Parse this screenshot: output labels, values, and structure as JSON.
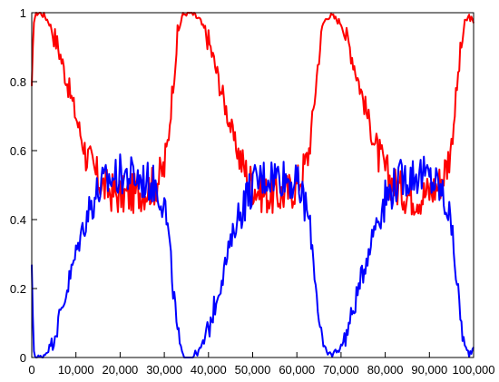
{
  "chart_data": {
    "type": "line",
    "title": "",
    "xlabel": "",
    "ylabel": "",
    "xlim": [
      0,
      100000
    ],
    "ylim": [
      0,
      1
    ],
    "grid": false,
    "legend": "none",
    "x_ticks": [
      {
        "value": 0,
        "label": "0"
      },
      {
        "value": 10000,
        "label": "10,000"
      },
      {
        "value": 20000,
        "label": "20,000"
      },
      {
        "value": 30000,
        "label": "30,000"
      },
      {
        "value": 40000,
        "label": "40,000"
      },
      {
        "value": 50000,
        "label": "50,000"
      },
      {
        "value": 60000,
        "label": "60,000"
      },
      {
        "value": 70000,
        "label": "70,000"
      },
      {
        "value": 80000,
        "label": "80,000"
      },
      {
        "value": 90000,
        "label": "90,000"
      },
      {
        "value": 100000,
        "label": "100,000"
      }
    ],
    "y_ticks": [
      {
        "value": 0,
        "label": "0"
      },
      {
        "value": 0.2,
        "label": "0.2"
      },
      {
        "value": 0.4,
        "label": "0.4"
      },
      {
        "value": 0.6,
        "label": "0.6"
      },
      {
        "value": 0.8,
        "label": "0.8"
      },
      {
        "value": 1,
        "label": "1"
      }
    ],
    "x": [
      0,
      500,
      1000,
      2000,
      3000,
      4000,
      6000,
      8000,
      10000,
      12000,
      14000,
      16000,
      18000,
      20000,
      22000,
      24000,
      26000,
      28000,
      30000,
      31000,
      32000,
      33000,
      34000,
      35000,
      36000,
      37000,
      38000,
      40000,
      42000,
      44000,
      46000,
      48000,
      50000,
      52000,
      54000,
      56000,
      58000,
      60000,
      62000,
      63000,
      64000,
      65000,
      66000,
      67000,
      68000,
      69000,
      70000,
      72000,
      74000,
      76000,
      78000,
      80000,
      82000,
      84000,
      86000,
      88000,
      90000,
      92000,
      94000,
      95000,
      96000,
      97000,
      98000,
      99000,
      100000
    ],
    "series": [
      {
        "color": "#ff0000",
        "values": [
          0.76,
          0.98,
          1.0,
          1.0,
          0.99,
          0.97,
          0.9,
          0.8,
          0.7,
          0.6,
          0.54,
          0.5,
          0.48,
          0.47,
          0.47,
          0.48,
          0.49,
          0.5,
          0.55,
          0.65,
          0.8,
          0.93,
          0.99,
          1.0,
          1.0,
          0.99,
          0.98,
          0.92,
          0.82,
          0.72,
          0.62,
          0.55,
          0.5,
          0.48,
          0.47,
          0.47,
          0.48,
          0.5,
          0.56,
          0.62,
          0.75,
          0.88,
          0.97,
          0.99,
          0.99,
          0.98,
          0.97,
          0.9,
          0.8,
          0.7,
          0.6,
          0.54,
          0.5,
          0.48,
          0.47,
          0.47,
          0.48,
          0.5,
          0.56,
          0.62,
          0.75,
          0.88,
          0.97,
          0.99,
          0.97
        ]
      },
      {
        "color": "#0000ff",
        "values": [
          0.24,
          0.02,
          0.0,
          0.0,
          0.01,
          0.03,
          0.1,
          0.2,
          0.3,
          0.4,
          0.46,
          0.5,
          0.52,
          0.53,
          0.53,
          0.52,
          0.51,
          0.5,
          0.45,
          0.35,
          0.2,
          0.07,
          0.01,
          0.0,
          0.0,
          0.01,
          0.02,
          0.08,
          0.18,
          0.28,
          0.38,
          0.45,
          0.5,
          0.52,
          0.53,
          0.53,
          0.52,
          0.5,
          0.44,
          0.38,
          0.25,
          0.12,
          0.03,
          0.01,
          0.01,
          0.02,
          0.03,
          0.1,
          0.2,
          0.3,
          0.4,
          0.46,
          0.5,
          0.52,
          0.53,
          0.53,
          0.52,
          0.5,
          0.44,
          0.38,
          0.25,
          0.12,
          0.03,
          0.01,
          0.03
        ]
      }
    ]
  }
}
